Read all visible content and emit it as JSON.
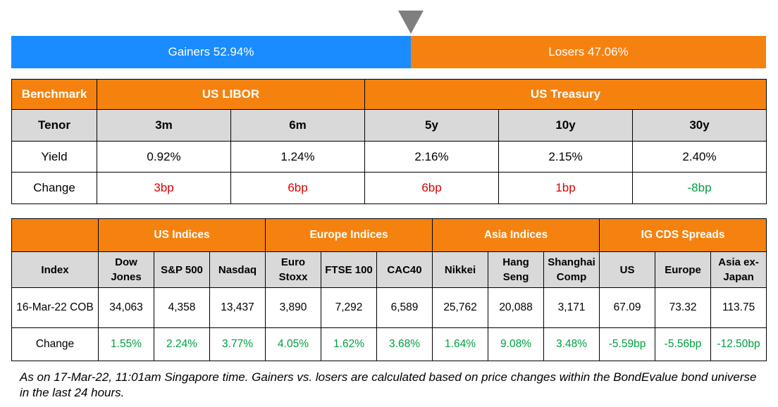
{
  "sentiment": {
    "gainers": {
      "label": "Gainers",
      "value": 52.94,
      "value_label": "52.94%"
    },
    "losers": {
      "label": "Losers",
      "value": 47.06,
      "value_label": "47.06%"
    }
  },
  "rates_table": {
    "header": [
      "Benchmark",
      "US LIBOR",
      "US Treasury"
    ],
    "rows": [
      [
        "Tenor",
        "3m",
        "6m",
        "5y",
        "10y",
        "30y"
      ],
      [
        "Yield",
        "0.92%",
        "1.24%",
        "2.16%",
        "2.15%",
        "2.40%"
      ],
      [
        "Change",
        "3bp",
        "6bp",
        "6bp",
        "1bp",
        "-8bp"
      ]
    ]
  },
  "indices_table": {
    "groups": [
      "US Indices",
      "Europe Indices",
      "Asia Indices",
      "IG CDS Spreads"
    ],
    "header": [
      "Index",
      "Dow Jones",
      "S&P 500",
      "Nasdaq",
      "Euro Stoxx",
      "FTSE 100",
      "CAC40",
      "Nikkei",
      "Hang Seng",
      "Shanghai Comp",
      "US",
      "Europe",
      "Asia ex-Japan"
    ],
    "rows": [
      [
        "16-Mar-22 COB",
        "34,063",
        "4,358",
        "13,437",
        "3,890",
        "7,292",
        "6,589",
        "25,762",
        "20,088",
        "3,171",
        "67.09",
        "73.32",
        "113.75"
      ],
      [
        "Change",
        "1.55%",
        "2.24%",
        "3.77%",
        "4.05%",
        "1.62%",
        "3.68%",
        "1.64%",
        "9.08%",
        "3.48%",
        "-5.59bp",
        "-5.56bp",
        "-12.50bp"
      ]
    ]
  },
  "footnote": "As on 17-Mar-22, 11:01am Singapore time. Gainers vs. losers are calculated based on price changes within the BondEvalue bond universe in the last 24 hours."
}
